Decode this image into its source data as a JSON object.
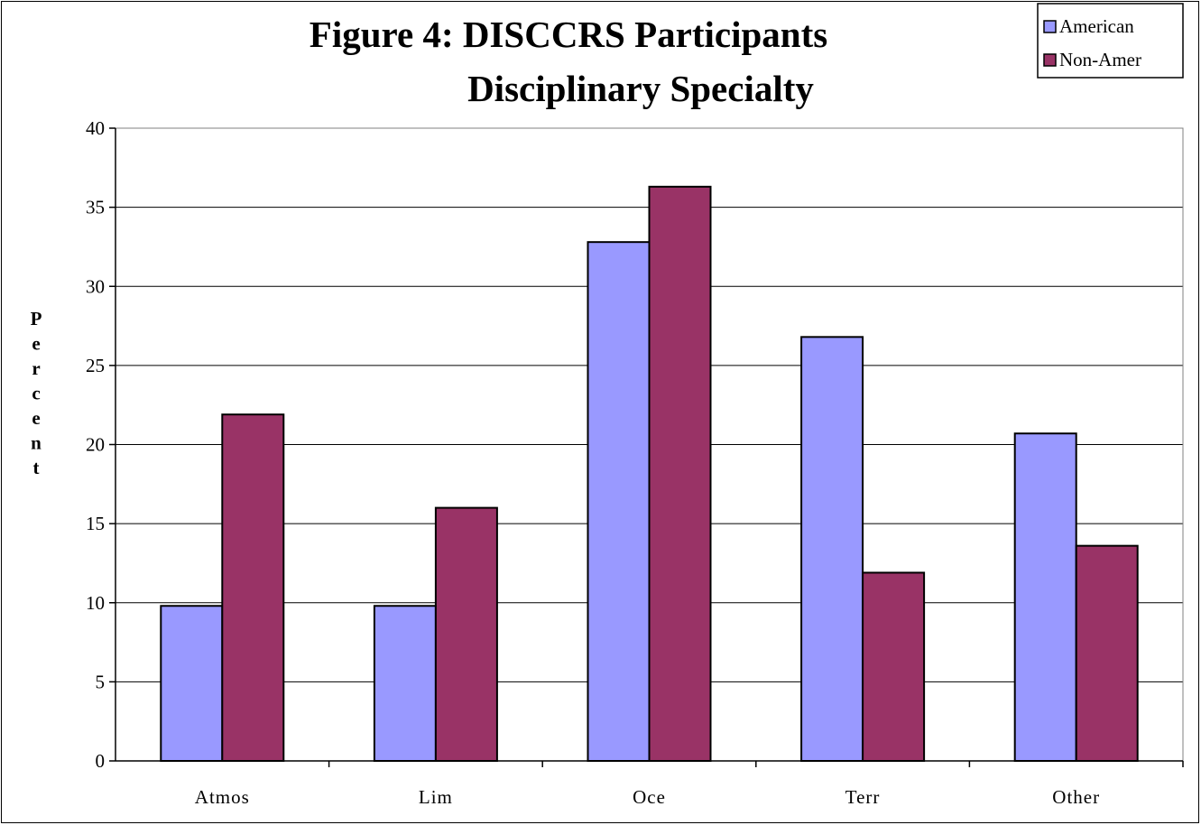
{
  "chart_data": {
    "type": "bar",
    "title_lines": [
      "Figure 4: DISCCRS Participants",
      "Disciplinary Specialty"
    ],
    "ylabel": "Percent",
    "xlabel": "",
    "categories": [
      "Atmos",
      "Lim",
      "Oce",
      "Terr",
      "Other"
    ],
    "series": [
      {
        "name": "American",
        "color": "#9999ff",
        "values": [
          9.8,
          9.8,
          32.8,
          26.8,
          20.7
        ]
      },
      {
        "name": "Non-Amer",
        "color": "#993366",
        "values": [
          21.9,
          16.0,
          36.3,
          11.9,
          13.6
        ]
      }
    ],
    "ylim": [
      0,
      40
    ],
    "yticks": [
      0,
      5,
      10,
      15,
      20,
      25,
      30,
      35,
      40
    ],
    "grid": true,
    "legend_position": "top-right"
  }
}
